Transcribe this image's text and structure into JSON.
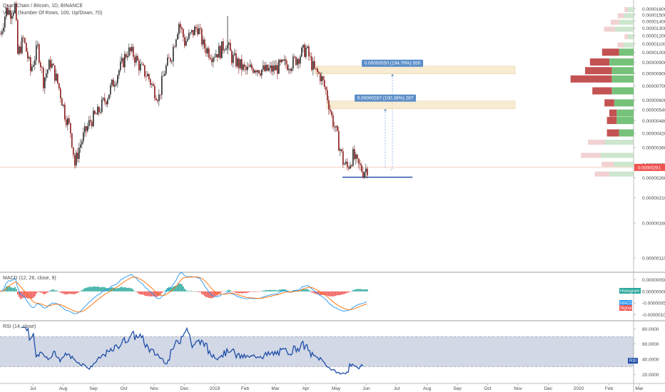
{
  "legends": {
    "main": "QuarkChain / Bitcoin, 1D, BINANCE",
    "vpvr": "VPVR (Number Of Rows, 100, Up/Down, 70)",
    "macd": "MACD (12, 26, close, 9)",
    "rsi": "RSI (14, close)"
  },
  "price_axis_labels": [
    "0.00001600",
    "0.00001500",
    "0.00001400",
    "0.00001300",
    "0.00001200",
    "0.00001100",
    "0.00001000",
    "0.00000900",
    "0.00000800",
    "0.00000700",
    "0.00000600",
    "0.00000540",
    "0.00000480",
    "0.00000420",
    "0.00000360",
    "0.00000300",
    "0.00000260",
    "0.00000210",
    "0.00000160",
    "0.00000110"
  ],
  "current_price": "0.00000291",
  "macd_axis_labels": [
    "0.00000050",
    "0.00000000",
    "-0.00000050",
    "-0.00000100"
  ],
  "macd_badges": [
    "Histogram",
    "MACD",
    "Signal"
  ],
  "rsi_axis_labels": [
    "80.0000",
    "60.0000",
    "40.0000",
    "20.0000"
  ],
  "rsi_badge": "RSI",
  "time_labels": [
    "Jul",
    "Aug",
    "Sep",
    "Oct",
    "Nov",
    "Dec",
    "2019",
    "Feb",
    "Mar",
    "Apr",
    "May",
    "Jun",
    "Jul",
    "Aug",
    "Sep",
    "Oct",
    "Nov",
    "Dec",
    "2020",
    "Feb",
    "Mar"
  ],
  "measures": [
    {
      "label": "0.00000550 (194.79%) 550"
    },
    {
      "label": "0.00000287 (100.38%) 287"
    }
  ],
  "colors": {
    "up": "#26a69a",
    "down": "#ef5350",
    "candle_down": "#8b1a1a",
    "candle_up": "#2a2a2a",
    "macd": "#2196f3",
    "signal": "#ff6d00",
    "rsi": "#1e4ea8",
    "measure_bg": "#5b8ec9",
    "zone": "#f3e2bf",
    "price_badge": "#ef5350",
    "support": "#2a4fa8"
  },
  "chart_data": [
    {
      "type": "candlestick",
      "title": "QuarkChain / Bitcoin, 1D, BINANCE",
      "y_scale": "log",
      "series": [
        {
          "name": "QuarkChain / Bitcoin",
          "x": [
            "2018-06",
            "2018-07",
            "2018-08",
            "2018-09",
            "2018-10",
            "2018-11",
            "2018-12",
            "2019-01",
            "2019-02",
            "2019-03",
            "2019-04",
            "2019-05",
            "2019-06"
          ],
          "values": [
            1.65e-05,
            1.15e-05,
            5.8e-06,
            3.2e-06,
            7.5e-06,
            9.2e-06,
            9.8e-06,
            1.18e-05,
            8.2e-06,
            8.5e-06,
            9.8e-06,
            3.6e-06,
            2.9e-06
          ]
        }
      ],
      "last_value": 2.91e-06,
      "measurements": [
        {
          "from": 2.82e-06,
          "to": 8.32e-06,
          "change": 5.5e-06,
          "percent": 194.79,
          "bars": 550
        },
        {
          "from": 2.85e-06,
          "to": 5.72e-06,
          "change": 2.87e-06,
          "percent": 100.38,
          "bars": 287
        }
      ],
      "volume_profile": {
        "type": "bar",
        "orientation": "horizontal",
        "price_levels": [
          1e-05,
          9e-06,
          8.2e-06,
          7.5e-06,
          6.6e-06,
          5.8e-06,
          5.2e-06,
          4.8e-06,
          4.2e-06
        ],
        "series": [
          {
            "name": "Up",
            "values": [
              6,
              10,
              9,
              9,
              9,
              8,
              7,
              7,
              6
            ]
          },
          {
            "name": "Down",
            "values": [
              7,
              8,
              11,
              17,
              8,
              4,
              3,
              4,
              5
            ]
          }
        ]
      }
    },
    {
      "type": "bar",
      "title": "MACD (12, 26, close, 9)",
      "series": [
        {
          "name": "Histogram",
          "values": [
            3.2e-07,
            2.5e-07,
            8e-08,
            -1.2e-07,
            -2.8e-07,
            6e-08,
            1.4e-07,
            1.8e-07,
            -1.6e-07,
            -2.2e-07,
            -1e-07,
            4e-08,
            6e-08,
            8e-08,
            -1.5e-07,
            -3e-07,
            4e-08,
            1.2e-07
          ]
        },
        {
          "name": "MACD",
          "values": [
            6e-07,
            3e-07,
            -3e-07,
            -8e-07,
            -2e-07,
            4e-07,
            3e-07,
            6e-07,
            -2e-07,
            -5e-07,
            -2e-07,
            0.0,
            1e-07,
            3e-07,
            -6e-07,
            -1.1e-06,
            -8e-07,
            -4e-07
          ]
        },
        {
          "name": "Signal",
          "values": [
            5e-07,
            4e-07,
            -1e-07,
            -5e-07,
            -4e-07,
            2e-07,
            3e-07,
            4e-07,
            1e-07,
            -3e-07,
            -3e-07,
            -1e-07,
            0.0,
            2e-07,
            -2e-07,
            -8e-07,
            -9e-07,
            -6e-07
          ]
        }
      ]
    },
    {
      "type": "line",
      "title": "RSI (14, close)",
      "ylim": [
        10,
        85
      ],
      "band": [
        30,
        70
      ],
      "series": [
        {
          "name": "RSI",
          "values": [
            38,
            34,
            30,
            40,
            36,
            44,
            30,
            25,
            40,
            50,
            62,
            55,
            70,
            78,
            60,
            48,
            60,
            64,
            56,
            50,
            60,
            48,
            54,
            62,
            50,
            68,
            54,
            42,
            30,
            32,
            20,
            14,
            24,
            48,
            40,
            38
          ]
        }
      ],
      "last_value": 38
    }
  ]
}
